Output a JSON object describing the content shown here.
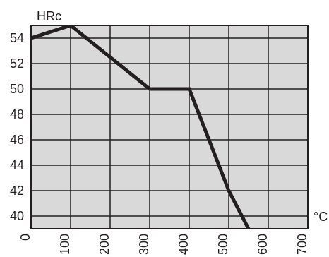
{
  "chart_data": {
    "type": "line",
    "title": "",
    "ylabel": "HRc",
    "xlabel": "°C",
    "xlim": [
      0,
      700
    ],
    "ylim": [
      39,
      55
    ],
    "xticks": [
      "0",
      "100",
      "200",
      "300",
      "400",
      "500",
      "600",
      "700"
    ],
    "yticks": [
      "40",
      "42",
      "44",
      "46",
      "48",
      "50",
      "52",
      "54"
    ],
    "grid": true,
    "series": [
      {
        "x": [
          0,
          100,
          300,
          400,
          500,
          550
        ],
        "y": [
          54,
          55,
          50,
          50,
          42,
          39
        ]
      }
    ],
    "colors": {
      "plot_bg": "#d9d9d9",
      "grid": "#231f20",
      "line": "#231f20"
    }
  }
}
